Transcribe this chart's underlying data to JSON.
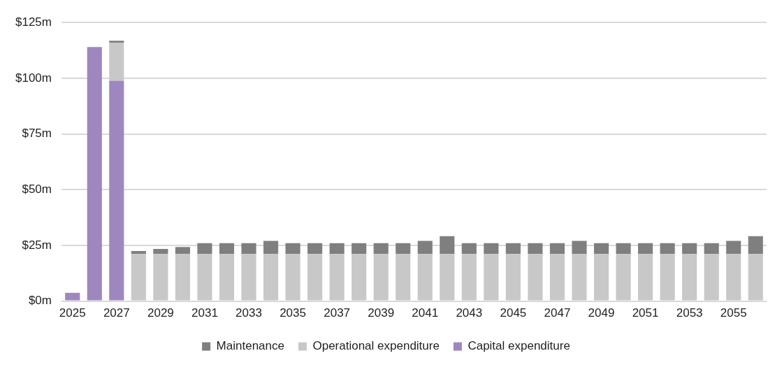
{
  "chart_data": {
    "type": "bar",
    "stacked": true,
    "categories": [
      "2025",
      null,
      "2027",
      null,
      "2029",
      null,
      "2031",
      null,
      "2033",
      null,
      "2035",
      null,
      "2037",
      null,
      "2039",
      null,
      "2041",
      null,
      "2043",
      null,
      "2045",
      null,
      "2047",
      null,
      "2049",
      null,
      "2051",
      null,
      "2053",
      null,
      "2055",
      null
    ],
    "series": [
      {
        "name": "Capital expenditure",
        "color": "#9e87be",
        "values": [
          3.7,
          114.0,
          98.9,
          null,
          null,
          null,
          null,
          null,
          null,
          null,
          null,
          null,
          null,
          null,
          null,
          null,
          null,
          null,
          null,
          null,
          null,
          null,
          null,
          null,
          null,
          null,
          null,
          null,
          null,
          null,
          null,
          null
        ]
      },
      {
        "name": "Operational expenditure",
        "color": "#c8c8c8",
        "values": [
          null,
          null,
          17.1,
          21.1,
          21.1,
          21.1,
          21.1,
          21.1,
          21.1,
          21.1,
          21.1,
          21.1,
          21.1,
          21.1,
          21.1,
          21.1,
          21.1,
          21.1,
          21.1,
          21.1,
          21.1,
          21.1,
          21.1,
          21.1,
          21.1,
          21.1,
          21.1,
          21.1,
          21.1,
          21.1,
          21.1,
          21.1
        ]
      },
      {
        "name": "Maintenance",
        "color": "#7f7f7f",
        "values": [
          null,
          null,
          0.8,
          1.4,
          2.3,
          3.2,
          4.9,
          4.9,
          4.9,
          5.9,
          4.9,
          4.9,
          4.9,
          4.9,
          4.9,
          4.9,
          5.9,
          8.0,
          4.9,
          4.9,
          4.9,
          4.9,
          4.9,
          5.9,
          4.9,
          4.9,
          4.9,
          4.9,
          4.9,
          4.9,
          5.9,
          8.0
        ]
      }
    ],
    "ylim": [
      0,
      125
    ],
    "yticks": [
      {
        "value": 0,
        "label": "$0m"
      },
      {
        "value": 25,
        "label": "$25m"
      },
      {
        "value": 50,
        "label": "$50m"
      },
      {
        "value": 75,
        "label": "$75m"
      },
      {
        "value": 100,
        "label": "$100m"
      },
      {
        "value": 125,
        "label": "$125m"
      }
    ],
    "grid": "y",
    "legend": "bottom"
  }
}
